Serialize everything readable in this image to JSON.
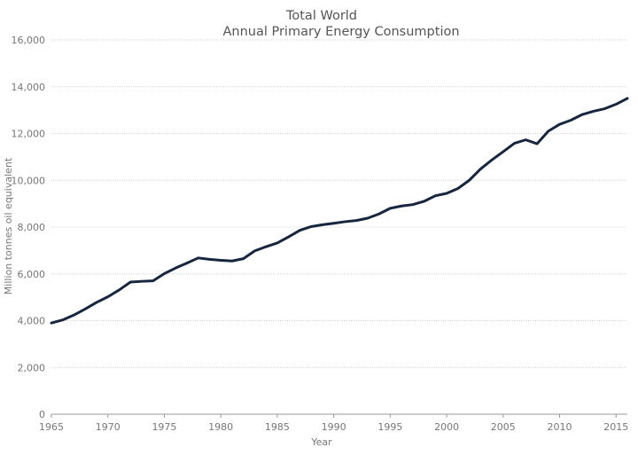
{
  "chart_data": {
    "type": "line",
    "title": "Total World",
    "subtitle": "Annual Primary Energy Consumption",
    "xlabel": "Year",
    "ylabel": "Million tonnes oil equivalent",
    "xlim": [
      1965,
      2016
    ],
    "ylim": [
      0,
      16000
    ],
    "x_ticks": [
      1965,
      1970,
      1975,
      1980,
      1985,
      1990,
      1995,
      2000,
      2005,
      2010,
      2015
    ],
    "y_ticks": [
      0,
      2000,
      4000,
      6000,
      8000,
      10000,
      12000,
      14000,
      16000
    ],
    "y_tick_labels": [
      "0",
      "2,000",
      "4,000",
      "6,000",
      "8,000",
      "10,000",
      "12,000",
      "14,000",
      "16,000"
    ],
    "grid": true,
    "series": [
      {
        "name": "Total World",
        "color": "#17263f",
        "x": [
          1965,
          1966,
          1967,
          1968,
          1969,
          1970,
          1971,
          1972,
          1973,
          1974,
          1975,
          1976,
          1977,
          1978,
          1979,
          1980,
          1981,
          1982,
          1983,
          1984,
          1985,
          1986,
          1987,
          1988,
          1989,
          1990,
          1991,
          1992,
          1993,
          1994,
          1995,
          1996,
          1997,
          1998,
          1999,
          2000,
          2001,
          2002,
          2003,
          2004,
          2005,
          2006,
          2007,
          2008,
          2009,
          2010,
          2011,
          2012,
          2013,
          2014,
          2015,
          2016
        ],
        "values": [
          3900,
          4030,
          4240,
          4500,
          4780,
          5020,
          5310,
          5650,
          5680,
          5700,
          6010,
          6250,
          6460,
          6680,
          6620,
          6580,
          6550,
          6650,
          6980,
          7160,
          7320,
          7580,
          7860,
          8020,
          8100,
          8160,
          8230,
          8280,
          8380,
          8560,
          8800,
          8900,
          8960,
          9100,
          9340,
          9440,
          9650,
          10000,
          10480,
          10870,
          11220,
          11580,
          11730,
          11560,
          12100,
          12390,
          12570,
          12810,
          12950,
          13060,
          13250,
          13500
        ]
      }
    ]
  }
}
